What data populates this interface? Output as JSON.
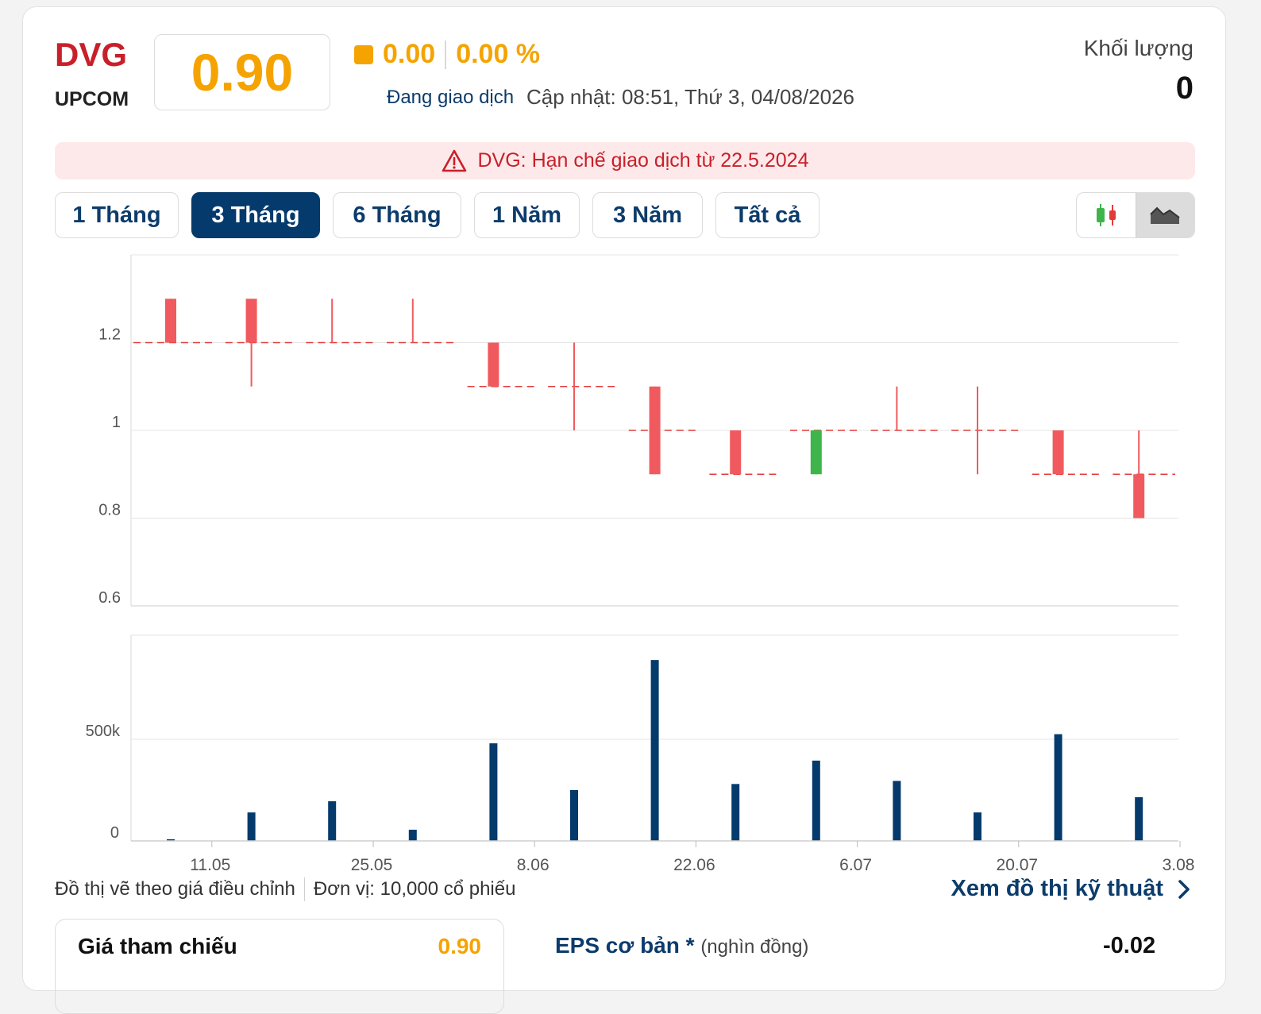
{
  "header": {
    "ticker": "DVG",
    "exchange": "UPCOM",
    "price": "0.90",
    "change": "0.00",
    "change_pct": "0.00 %",
    "status": "Đang giao dịch",
    "updated": "Cập nhật: 08:51, Thứ 3, 04/08/2026",
    "volume_label": "Khối lượng",
    "volume_value": "0"
  },
  "alert": {
    "text": "DVG: Hạn chế giao dịch từ 22.5.2024"
  },
  "tabs": [
    {
      "label": "1 Tháng",
      "active": false
    },
    {
      "label": "3 Tháng",
      "active": true
    },
    {
      "label": "6 Tháng",
      "active": false
    },
    {
      "label": "1 Năm",
      "active": false
    },
    {
      "label": "3 Năm",
      "active": false
    },
    {
      "label": "Tất cả",
      "active": false
    }
  ],
  "chart_type_toggle": {
    "options": [
      "candlestick-icon",
      "area-chart-icon"
    ],
    "selected": "area-chart-icon"
  },
  "colors": {
    "down": "#f05a5e",
    "up": "#3db54a",
    "volume": "#053a6c",
    "accent": "#f5a300",
    "navy": "#0c3c6b"
  },
  "chart_data": [
    {
      "type": "candlestick",
      "ylim": [
        0.6,
        1.4
      ],
      "yticks": [
        "0.6",
        "0.8",
        "1",
        "1.2"
      ],
      "ytick_values": [
        0.6,
        0.8,
        1.0,
        1.2
      ],
      "candles": [
        {
          "o": 1.3,
          "h": 1.3,
          "l": 1.2,
          "c": 1.2,
          "ref": 1.2
        },
        {
          "o": 1.3,
          "h": 1.3,
          "l": 1.1,
          "c": 1.2,
          "ref": 1.2
        },
        {
          "o": 1.2,
          "h": 1.3,
          "l": 1.2,
          "c": 1.2,
          "ref": 1.2
        },
        {
          "o": 1.2,
          "h": 1.3,
          "l": 1.2,
          "c": 1.2,
          "ref": 1.2
        },
        {
          "o": 1.2,
          "h": 1.2,
          "l": 1.1,
          "c": 1.1,
          "ref": 1.1
        },
        {
          "o": 1.1,
          "h": 1.2,
          "l": 1.0,
          "c": 1.1,
          "ref": 1.1
        },
        {
          "o": 1.1,
          "h": 1.1,
          "l": 0.9,
          "c": 0.9,
          "ref": 1.0
        },
        {
          "o": 1.0,
          "h": 1.0,
          "l": 0.9,
          "c": 0.9,
          "ref": 0.9
        },
        {
          "o": 0.9,
          "h": 1.0,
          "l": 0.9,
          "c": 1.0,
          "ref": 1.0
        },
        {
          "o": 1.0,
          "h": 1.1,
          "l": 1.0,
          "c": 1.0,
          "ref": 1.0
        },
        {
          "o": 1.0,
          "h": 1.1,
          "l": 0.9,
          "c": 1.0,
          "ref": 1.0
        },
        {
          "o": 1.0,
          "h": 1.0,
          "l": 0.9,
          "c": 0.9,
          "ref": 0.9
        },
        {
          "o": 0.9,
          "h": 1.0,
          "l": 0.8,
          "c": 0.8,
          "ref": 0.9
        }
      ]
    },
    {
      "type": "bar",
      "ylim": [
        0,
        1000000
      ],
      "yticks": [
        "0",
        "500k"
      ],
      "ytick_values": [
        0,
        500000
      ],
      "values": [
        8000,
        140000,
        195000,
        55000,
        480000,
        250000,
        890000,
        280000,
        395000,
        295000,
        140000,
        525000,
        215000
      ]
    }
  ],
  "xaxis": {
    "ticks": [
      "11.05",
      "25.05",
      "8.06",
      "22.06",
      "6.07",
      "20.07",
      "3.08"
    ],
    "tick_positions": [
      0.5,
      2.5,
      4.5,
      6.5,
      8.5,
      10.5,
      12.5
    ]
  },
  "footer": {
    "note": "Đồ thị vẽ theo giá điều chỉnh",
    "unit": "Đơn vị: 10,000 cổ phiếu",
    "tech_link": "Xem đồ thị kỹ thuật"
  },
  "stats": {
    "ref_label": "Giá tham chiếu",
    "ref_value": "0.90",
    "eps_label": "EPS cơ bản *",
    "eps_unit": "(nghìn đồng)",
    "eps_value": "-0.02"
  }
}
